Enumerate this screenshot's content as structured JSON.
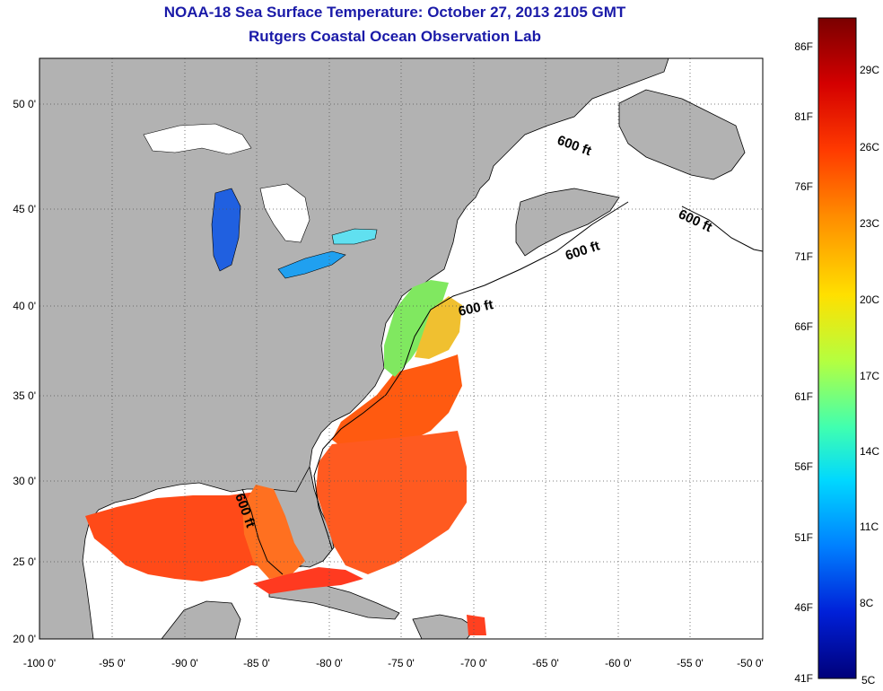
{
  "title": "NOAA-18 Sea Surface Temperature:  October 27, 2013 2105 GMT",
  "subtitle": "Rutgers Coastal Ocean Observation Lab",
  "map": {
    "lon_range": [
      -100,
      -50
    ],
    "lat_range": [
      20,
      52.5
    ],
    "lon_ticks": [
      "-100 0'",
      "-95 0'",
      "-90 0'",
      "-85 0'",
      "-80 0'",
      "-75 0'",
      "-70 0'",
      "-65 0'",
      "-60 0'",
      "-55 0'",
      "-50 0'"
    ],
    "lat_ticks": [
      "20 0'",
      "25 0'",
      "30 0'",
      "35 0'",
      "40 0'",
      "45 0'",
      "50 0'"
    ],
    "contour_labels": [
      "600 ft",
      "600 ft",
      "600 ft",
      "600 ft",
      "600 ft"
    ],
    "colors": {
      "land": "#b2b2b2",
      "ocean_nodata": "#ffffff",
      "grid": "#555555"
    }
  },
  "colorbar": {
    "fahrenheit": [
      "86F",
      "81F",
      "76F",
      "71F",
      "66F",
      "61F",
      "56F",
      "51F",
      "46F",
      "41F"
    ],
    "celsius": [
      "29C",
      "26C",
      "23C",
      "20C",
      "17C",
      "14C",
      "11C",
      "8C",
      "5C"
    ],
    "colors": [
      "#7a0000",
      "#d40000",
      "#ff3a00",
      "#ff8c00",
      "#ffe000",
      "#b4ff40",
      "#40ffb0",
      "#00d8ff",
      "#0080ff",
      "#0020d8",
      "#00007a"
    ]
  }
}
